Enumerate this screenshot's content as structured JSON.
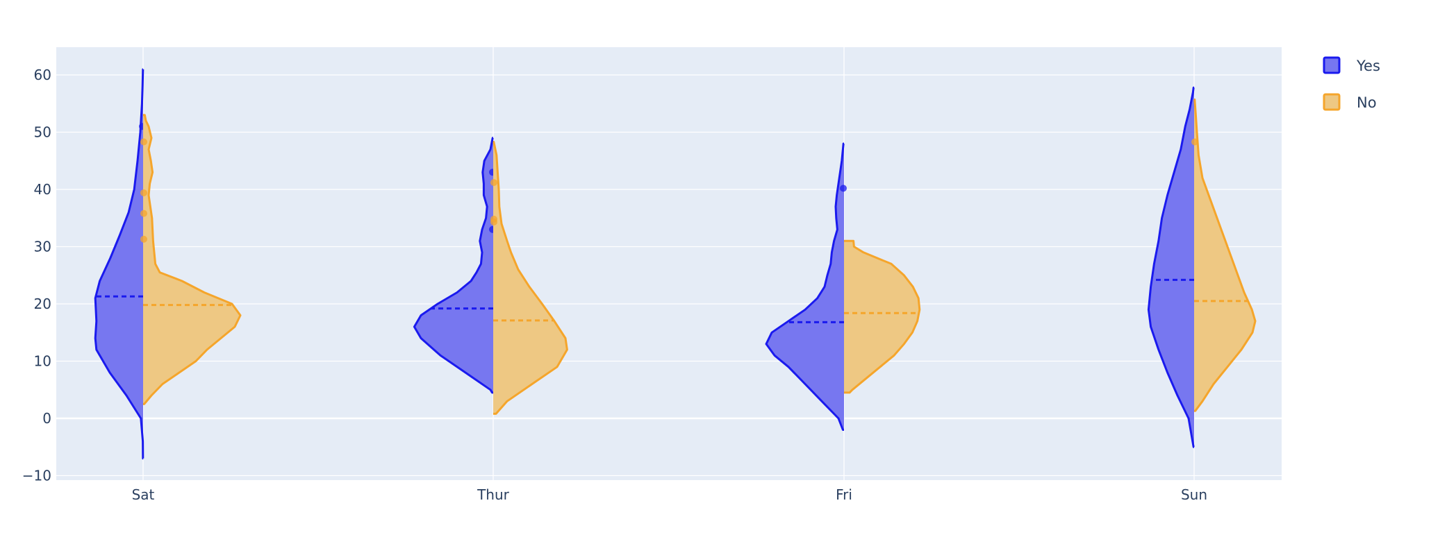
{
  "chart_data": {
    "type": "violin",
    "split": true,
    "categories": [
      "Sat",
      "Thur",
      "Fri",
      "Sun"
    ],
    "ylim": [
      -11,
      65
    ],
    "yticks": [
      -10,
      0,
      10,
      20,
      30,
      40,
      50,
      60
    ],
    "grid": true,
    "legend_position": "top-right",
    "colors": {
      "plot_bg": "#e5ecf6",
      "grid": "#ffffff",
      "axis_text": "#2a3f5f",
      "yes_line": "#1a1aee",
      "yes_fill": "#7777f0",
      "no_line": "#f5a52b",
      "no_fill": "#eec883"
    },
    "series": [
      {
        "name": "Yes",
        "side": "negative",
        "line_color": "#1a1aee",
        "fill_color": "#7777f0",
        "violins": [
          {
            "category": "Sat",
            "y_min": -7,
            "y_max": 61,
            "mean": 21.3,
            "density": [
              [
                -7,
                0.2
              ],
              [
                -4,
                0.5
              ],
              [
                0,
                4
              ],
              [
                4,
                30
              ],
              [
                8,
                60
              ],
              [
                12,
                84
              ],
              [
                14,
                86
              ],
              [
                17,
                84
              ],
              [
                21,
                86
              ],
              [
                24,
                78
              ],
              [
                28,
                59
              ],
              [
                32,
                42
              ],
              [
                36,
                26
              ],
              [
                40,
                16
              ],
              [
                45,
                10
              ],
              [
                50,
                5
              ],
              [
                55,
                2
              ],
              [
                58,
                1
              ],
              [
                61,
                0.3
              ]
            ],
            "outliers": [
              51
            ]
          },
          {
            "category": "Thur",
            "y_min": 4.5,
            "y_max": 49,
            "mean": 19.2,
            "density": [
              [
                4.5,
                2
              ],
              [
                5,
                5
              ],
              [
                8,
                50
              ],
              [
                11,
                95
              ],
              [
                14,
                130
              ],
              [
                16,
                142
              ],
              [
                18,
                130
              ],
              [
                20,
                100
              ],
              [
                22,
                65
              ],
              [
                24,
                40
              ],
              [
                25.5,
                30
              ],
              [
                27,
                22
              ],
              [
                29,
                20
              ],
              [
                31,
                24
              ],
              [
                33,
                20
              ],
              [
                35,
                13
              ],
              [
                37,
                11
              ],
              [
                39,
                17
              ],
              [
                41,
                17
              ],
              [
                43,
                19
              ],
              [
                45,
                16
              ],
              [
                47,
                5
              ],
              [
                49,
                1
              ]
            ],
            "outliers": [
              43,
              33
            ]
          },
          {
            "category": "Fri",
            "y_min": -2,
            "y_max": 48,
            "mean": 16.8,
            "density": [
              [
                -2,
                2
              ],
              [
                0,
                10
              ],
              [
                3,
                40
              ],
              [
                6,
                70
              ],
              [
                9,
                100
              ],
              [
                11,
                125
              ],
              [
                13,
                140
              ],
              [
                15,
                130
              ],
              [
                17,
                100
              ],
              [
                19,
                70
              ],
              [
                21,
                48
              ],
              [
                23,
                35
              ],
              [
                25,
                30
              ],
              [
                27,
                24
              ],
              [
                29,
                22
              ],
              [
                31,
                18
              ],
              [
                33,
                12
              ],
              [
                35,
                14
              ],
              [
                37,
                15
              ],
              [
                39,
                13
              ],
              [
                41,
                10
              ],
              [
                43,
                7
              ],
              [
                45,
                4
              ],
              [
                47,
                2
              ],
              [
                48,
                1
              ]
            ],
            "outliers": [
              40.2
            ]
          },
          {
            "category": "Sun",
            "y_min": -5,
            "y_max": 57.8,
            "mean": 24.2,
            "density": [
              [
                -5,
                1
              ],
              [
                0,
                10
              ],
              [
                4,
                30
              ],
              [
                8,
                48
              ],
              [
                12,
                64
              ],
              [
                16,
                78
              ],
              [
                19,
                82
              ],
              [
                21,
                80
              ],
              [
                23,
                78
              ],
              [
                27,
                72
              ],
              [
                31,
                64
              ],
              [
                35,
                58
              ],
              [
                39,
                48
              ],
              [
                43,
                36
              ],
              [
                47,
                24
              ],
              [
                51,
                16
              ],
              [
                54,
                8
              ],
              [
                57,
                2
              ],
              [
                57.8,
                1
              ]
            ],
            "outliers": []
          }
        ]
      },
      {
        "name": "No",
        "side": "positive",
        "line_color": "#f5a52b",
        "fill_color": "#eec883",
        "violins": [
          {
            "category": "Sat",
            "y_min": 2.5,
            "y_max": 53,
            "mean": 19.8,
            "density": [
              [
                2.5,
                2
              ],
              [
                4,
                15
              ],
              [
                6,
                35
              ],
              [
                8,
                65
              ],
              [
                10,
                95
              ],
              [
                12,
                115
              ],
              [
                14,
                140
              ],
              [
                16,
                165
              ],
              [
                18,
                175
              ],
              [
                20,
                160
              ],
              [
                22,
                110
              ],
              [
                24,
                70
              ],
              [
                25.5,
                30
              ],
              [
                27,
                22
              ],
              [
                29,
                20
              ],
              [
                31,
                18
              ],
              [
                33,
                17
              ],
              [
                35,
                16
              ],
              [
                37,
                13
              ],
              [
                39,
                10
              ],
              [
                41,
                12
              ],
              [
                43,
                17
              ],
              [
                45,
                14
              ],
              [
                47,
                10
              ],
              [
                49,
                15
              ],
              [
                51,
                10
              ],
              [
                52,
                5
              ],
              [
                53,
                3
              ]
            ],
            "outliers": [
              48.3,
              39.4,
              35.8,
              31.3
            ]
          },
          {
            "category": "Thur",
            "y_min": 0.8,
            "y_max": 48.3,
            "mean": 17.1,
            "density": [
              [
                0.8,
                5
              ],
              [
                3,
                25
              ],
              [
                6,
                70
              ],
              [
                9,
                115
              ],
              [
                12,
                133
              ],
              [
                14,
                130
              ],
              [
                17,
                110
              ],
              [
                20,
                88
              ],
              [
                23,
                65
              ],
              [
                26,
                45
              ],
              [
                29,
                32
              ],
              [
                31,
                25
              ],
              [
                34,
                15
              ],
              [
                37,
                11
              ],
              [
                40,
                10
              ],
              [
                43,
                8
              ],
              [
                46,
                6
              ],
              [
                48.3,
                1
              ]
            ],
            "outliers": [
              41.2,
              34.8,
              34.3
            ]
          },
          {
            "category": "Fri",
            "y_min": 4.5,
            "y_max": 31,
            "mean": 18.4,
            "density": [
              [
                4.5,
                10
              ],
              [
                5,
                15
              ],
              [
                7,
                40
              ],
              [
                9,
                65
              ],
              [
                11,
                90
              ],
              [
                13,
                108
              ],
              [
                15,
                123
              ],
              [
                17,
                132
              ],
              [
                19,
                136
              ],
              [
                21,
                134
              ],
              [
                23,
                124
              ],
              [
                25,
                108
              ],
              [
                27,
                85
              ],
              [
                29,
                35
              ],
              [
                30,
                18
              ],
              [
                31,
                17
              ]
            ],
            "outliers": []
          },
          {
            "category": "Sun",
            "y_min": 1.3,
            "y_max": 55.7,
            "mean": 20.5,
            "density": [
              [
                1.3,
                2
              ],
              [
                3,
                15
              ],
              [
                6,
                35
              ],
              [
                9,
                60
              ],
              [
                12,
                85
              ],
              [
                15,
                105
              ],
              [
                17,
                110
              ],
              [
                19,
                104
              ],
              [
                22,
                90
              ],
              [
                26,
                75
              ],
              [
                30,
                60
              ],
              [
                34,
                45
              ],
              [
                38,
                30
              ],
              [
                42,
                15
              ],
              [
                46,
                8
              ],
              [
                50,
                5
              ],
              [
                53,
                3
              ],
              [
                55.7,
                1
              ]
            ],
            "outliers": [
              48.3
            ]
          }
        ]
      }
    ]
  },
  "legend": {
    "items": [
      {
        "label": "Yes",
        "line_color": "#1a1aee",
        "fill_color": "#7777f0"
      },
      {
        "label": "No",
        "line_color": "#f5a52b",
        "fill_color": "#eec883"
      }
    ]
  }
}
